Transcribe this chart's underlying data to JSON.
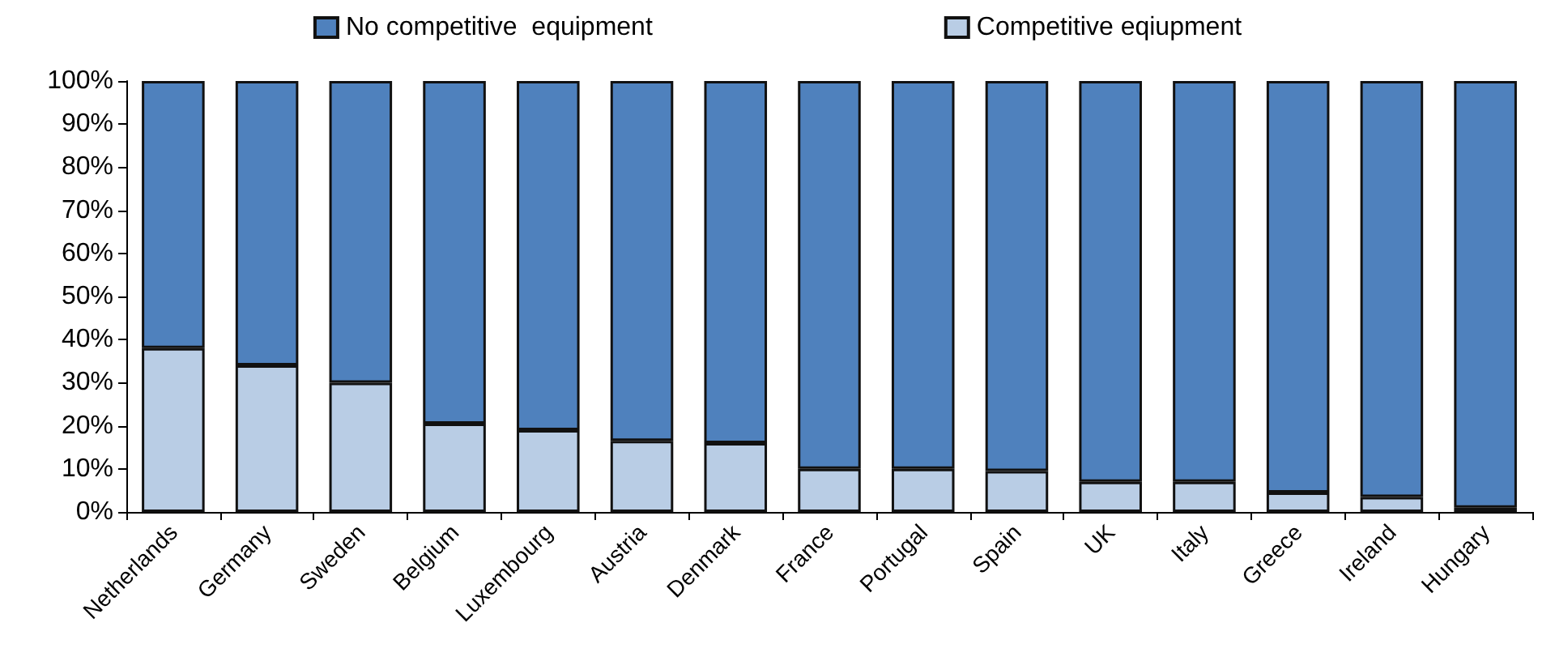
{
  "chart_data": {
    "type": "bar",
    "stacked": true,
    "legend": "top",
    "grid": false,
    "categories": [
      "Netherlands",
      "Germany",
      "Sweden",
      "Belgium",
      "Luxembourg",
      "Austria",
      "Denmark",
      "France",
      "Portugal",
      "Spain",
      "UK",
      "Italy",
      "Greece",
      "Ireland",
      "Hungary"
    ],
    "series": [
      {
        "name": "Competitive eqiupment",
        "color": "#b9cde5",
        "values": [
          38,
          34,
          30,
          20.5,
          19,
          16.5,
          16,
          10,
          10,
          9.5,
          7,
          7,
          4.5,
          3.5,
          1
        ]
      },
      {
        "name": "No competitive  equipment",
        "color": "#4f81bd",
        "values": [
          62,
          66,
          70,
          79.5,
          81,
          83.5,
          84,
          90,
          90,
          90.5,
          93,
          93,
          95.5,
          96.5,
          99
        ]
      }
    ],
    "ylim": [
      0,
      100
    ],
    "yticks": [
      {
        "value": 0,
        "label": "0%"
      },
      {
        "value": 10,
        "label": "10%"
      },
      {
        "value": 20,
        "label": "20%"
      },
      {
        "value": 30,
        "label": "30%"
      },
      {
        "value": 40,
        "label": "40%"
      },
      {
        "value": 50,
        "label": "50%"
      },
      {
        "value": 60,
        "label": "60%"
      },
      {
        "value": 70,
        "label": "70%"
      },
      {
        "value": 80,
        "label": "80%"
      },
      {
        "value": 90,
        "label": "90%"
      },
      {
        "value": 100,
        "label": "100%"
      }
    ]
  }
}
